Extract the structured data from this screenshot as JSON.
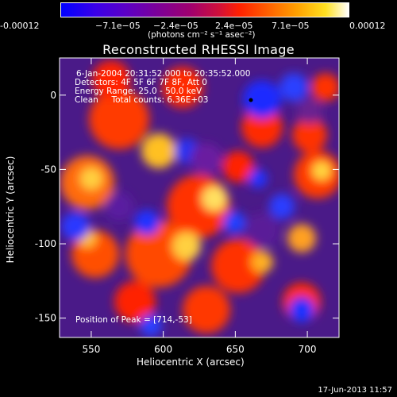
{
  "colorbar": {
    "tick_labels": [
      "-0.00012",
      "−7.1e−05",
      "−2.4e−05",
      "2.4e−05",
      "7.1e−05",
      "0.00012"
    ],
    "unit_label": "(photons cm⁻² s⁻¹ asec⁻²)"
  },
  "title": "Reconstructed RHESSI Image",
  "info": {
    "line1": "6-Jan-2004 20:31:52.000 to 20:35:52.000",
    "line2": "Detectors: 4F 5F 6F 7F 8F, Att 0",
    "line3": "Energy Range: 25.0 - 50.0 keV",
    "line4": "Clean     Total counts: 6.36E+03"
  },
  "peak_text": "Position of Peak = [714,-53]",
  "timestamp": "17-Jun-2013 11:57",
  "chart_data": {
    "type": "heatmap",
    "title": "Reconstructed RHESSI Image",
    "xlabel": "Heliocentric X (arcsec)",
    "ylabel": "Heliocentric Y (arcsec)",
    "xlim": [
      528,
      722
    ],
    "ylim": [
      -163,
      25
    ],
    "x_ticks": [
      550,
      600,
      650,
      700
    ],
    "y_ticks": [
      0,
      -50,
      -100,
      -150
    ],
    "colorbar_range": [
      -0.00012,
      0.00012
    ],
    "colormap": "blue-purple-red-yellow-white",
    "peak": [
      714,
      -53
    ]
  }
}
